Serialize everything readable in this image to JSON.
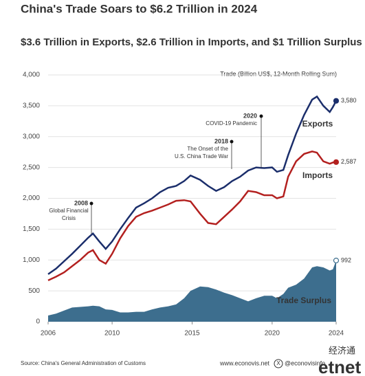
{
  "chart_data": {
    "type": "line",
    "title": "China's Trade Soars to $6.2 Trillion in 2024",
    "subtitle": "$3.6 Trillion in Exports, $2.6 Trillion in Imports, and $1 Trillion Surplus",
    "y_label": "Trade (Billion US$, 12-Month Rolling Sum)",
    "x": [
      2006,
      2006.5,
      2007,
      2007.5,
      2008,
      2008.5,
      2008.8,
      2009.2,
      2009.6,
      2010,
      2010.5,
      2011,
      2011.5,
      2012,
      2012.5,
      2013,
      2013.5,
      2014,
      2014.5,
      2014.9,
      2015.5,
      2016,
      2016.5,
      2017,
      2017.5,
      2018,
      2018.5,
      2019,
      2019.5,
      2020,
      2020.3,
      2020.7,
      2021,
      2021.5,
      2022,
      2022.5,
      2022.8,
      2023.2,
      2023.6,
      2023.8,
      2024
    ],
    "series": [
      {
        "name": "Exports",
        "color": "#1b2e6b",
        "values": [
          770,
          860,
          980,
          1100,
          1230,
          1360,
          1430,
          1300,
          1180,
          1300,
          1500,
          1680,
          1850,
          1920,
          2000,
          2100,
          2170,
          2200,
          2280,
          2370,
          2300,
          2200,
          2120,
          2180,
          2280,
          2350,
          2450,
          2500,
          2490,
          2500,
          2430,
          2460,
          2700,
          3050,
          3350,
          3600,
          3650,
          3500,
          3400,
          3480,
          3580
        ],
        "value_labels": {
          "40": "3,580"
        }
      },
      {
        "name": "Imports",
        "color": "#b3201f",
        "values": [
          670,
          730,
          800,
          900,
          1000,
          1120,
          1160,
          1000,
          940,
          1100,
          1350,
          1550,
          1700,
          1760,
          1800,
          1850,
          1900,
          1960,
          1970,
          1950,
          1750,
          1600,
          1580,
          1700,
          1820,
          1950,
          2120,
          2100,
          2050,
          2050,
          2000,
          2030,
          2350,
          2600,
          2720,
          2760,
          2740,
          2600,
          2560,
          2580,
          2587
        ],
        "value_labels": {
          "40": "2,587"
        }
      },
      {
        "name": "Trade Surplus",
        "color": "#3d6e8e",
        "area": true,
        "values": [
          100,
          130,
          180,
          230,
          240,
          250,
          260,
          250,
          200,
          190,
          150,
          150,
          160,
          160,
          200,
          230,
          250,
          280,
          380,
          500,
          570,
          560,
          520,
          470,
          430,
          380,
          330,
          380,
          420,
          420,
          380,
          450,
          550,
          600,
          700,
          880,
          900,
          880,
          830,
          850,
          992
        ],
        "value_labels": {
          "40": "992"
        }
      }
    ],
    "xlim": [
      2006,
      2024
    ],
    "xticks": [
      2006,
      2010,
      2015,
      2020,
      2024
    ],
    "ylim": [
      0,
      4000
    ],
    "yticks": [
      0,
      500,
      {
        "value": 1000,
        "label": "1,000"
      },
      {
        "value": 1500,
        "label": "1,500"
      },
      {
        "value": 2000,
        "label": "2,000"
      },
      {
        "value": 2500,
        "label": "2,500"
      },
      {
        "value": 3000,
        "label": "3,000"
      },
      {
        "value": 3500,
        "label": "3,500"
      },
      {
        "value": 4000,
        "label": "4,000"
      }
    ],
    "grid": true,
    "annotations": [
      {
        "year": "2008",
        "lines": [
          "Global Financial",
          "Crisis"
        ]
      },
      {
        "year": "2018",
        "lines": [
          "The Onset of the",
          "U.S. China Trade War"
        ]
      },
      {
        "year": "2020",
        "lines": [
          "COVID-19 Pandemic"
        ]
      }
    ],
    "source": "Source: China's General Administration of Customs",
    "website": "www.econovis.net",
    "handle": "@econovisinfo",
    "watermark": [
      "经济通",
      "etnet"
    ]
  }
}
